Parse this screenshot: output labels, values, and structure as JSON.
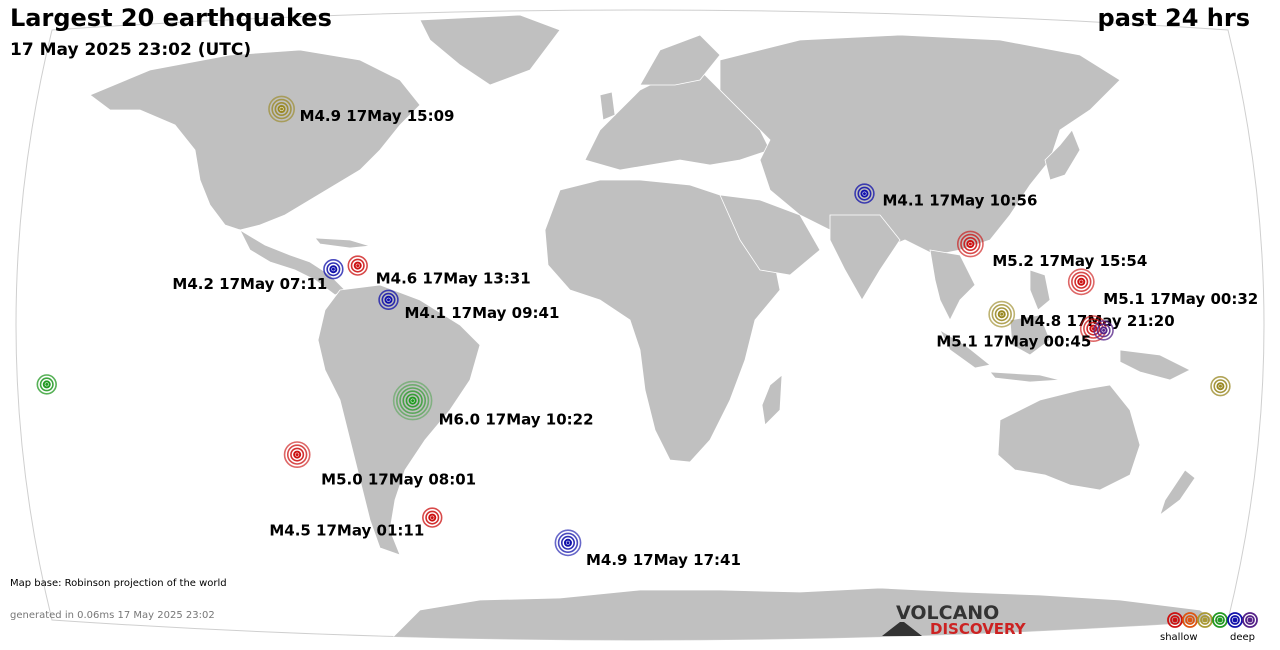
{
  "header": {
    "title": "Largest 20 earthquakes",
    "timestamp": "17 May 2025 23:02 (UTC)",
    "period": "past 24 hrs"
  },
  "footer": {
    "map_base": "Map base: Robinson projection of the world",
    "generated": "generated in 0.06ms 17 May 2025 23:02"
  },
  "logo": {
    "top": "VOLCANO",
    "bottom": "DISCOVERY"
  },
  "legend": {
    "shallow_label": "shallow",
    "deep_label": "deep",
    "depth_colors": [
      "#cc1111",
      "#dd5511",
      "#aa9933",
      "#229922",
      "#1111aa",
      "#552288"
    ]
  },
  "colors": {
    "land": "#c0c0c0",
    "ocean": "#ffffff",
    "title": "#000000"
  },
  "earthquakes": [
    {
      "label": "M4.9 17May 15:09",
      "lon": -132,
      "lat": 60,
      "mag": 4.9,
      "color": "#998822"
    },
    {
      "label": "M4.2 17May 07:11",
      "lon": -93,
      "lat": 15.5,
      "mag": 4.2,
      "color": "#1111aa"
    },
    {
      "label": "M4.6 17May 13:31",
      "lon": -86,
      "lat": 16.5,
      "mag": 4.6,
      "color": "#cc1111"
    },
    {
      "label": "M4.1 17May 09:41",
      "lon": -76,
      "lat": 7,
      "mag": 4.1,
      "color": "#1111aa"
    },
    {
      "label": "M6.0 17May 10:22",
      "lon": -70.5,
      "lat": -21,
      "mag": 6.0,
      "color": "#229922"
    },
    {
      "label": "M5.0 17May 08:01",
      "lon": -110,
      "lat": -36,
      "mag": 5.0,
      "color": "#cc1111"
    },
    {
      "label": "M4.5 17May 01:11",
      "lon": -74.5,
      "lat": -53.5,
      "mag": 4.5,
      "color": "#cc1111"
    },
    {
      "label": "M4.9 17May 17:41",
      "lon": -29.5,
      "lat": -60.5,
      "mag": 4.9,
      "color": "#1111aa"
    },
    {
      "label": "M4.1 17May 10:56",
      "lon": 67,
      "lat": 36.5,
      "mag": 4.1,
      "color": "#1111aa"
    },
    {
      "label": "M5.2 17May 15:54",
      "lon": 95.5,
      "lat": 22.5,
      "mag": 5.2,
      "color": "#cc1111"
    },
    {
      "label": "M5.1 17May 00:32",
      "lon": 126,
      "lat": 12,
      "mag": 5.1,
      "color": "#cc1111"
    },
    {
      "label": "M4.8 17May 21:20",
      "lon": 102,
      "lat": 3,
      "mag": 4.8,
      "color": "#998822"
    },
    {
      "label": "M5.1 17May 00:45",
      "lon": 128.5,
      "lat": -1,
      "mag": 5.1,
      "color": "#cc1111"
    },
    {
      "label": "",
      "lon": 131.5,
      "lat": -1.5,
      "mag": 4.6,
      "color": "#552288"
    },
    {
      "label": "",
      "lon": 168,
      "lat": -17,
      "mag": 4.7,
      "color": "#998822"
    },
    {
      "label": "",
      "lon": -177.5,
      "lat": -16.5,
      "mag": 4.7,
      "color": "#229922"
    }
  ]
}
